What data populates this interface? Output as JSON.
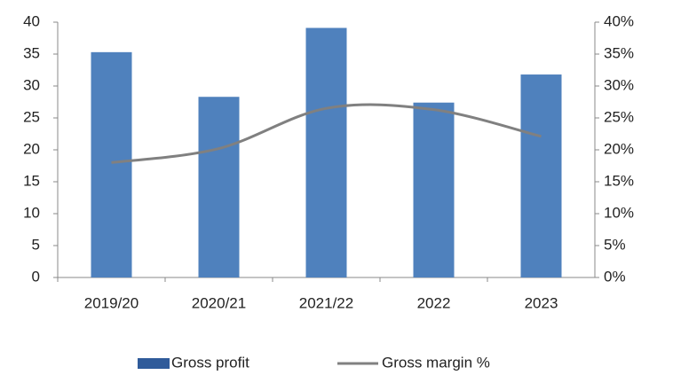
{
  "chart_data": {
    "type": "bar+line",
    "categories": [
      "2019/20",
      "2020/21",
      "2021/22",
      "2022",
      "2023"
    ],
    "series": [
      {
        "name": "Gross profit",
        "type": "bar",
        "color": "#4f81bd",
        "values": [
          35.3,
          28.3,
          39.1,
          27.4,
          31.8
        ]
      },
      {
        "name": "Gross margin %",
        "type": "line",
        "axis": "y2",
        "color": "#808080",
        "smooth": true,
        "values": [
          18.0,
          20.2,
          26.5,
          26.3,
          22.1
        ]
      }
    ],
    "ylim": [
      0,
      40
    ],
    "yticks": [
      0,
      5,
      10,
      15,
      20,
      25,
      30,
      35,
      40
    ],
    "y2lim": [
      0,
      40
    ],
    "y2ticks": [
      {
        "value": 0,
        "label": "0%"
      },
      {
        "value": 5,
        "label": "5%"
      },
      {
        "value": 10,
        "label": "10%"
      },
      {
        "value": 15,
        "label": "15%"
      },
      {
        "value": 20,
        "label": "20%"
      },
      {
        "value": 25,
        "label": "25%"
      },
      {
        "value": 30,
        "label": "30%"
      },
      {
        "value": 35,
        "label": "35%"
      },
      {
        "value": 40,
        "label": "40%"
      }
    ],
    "legend": "bottom",
    "grid": false
  }
}
